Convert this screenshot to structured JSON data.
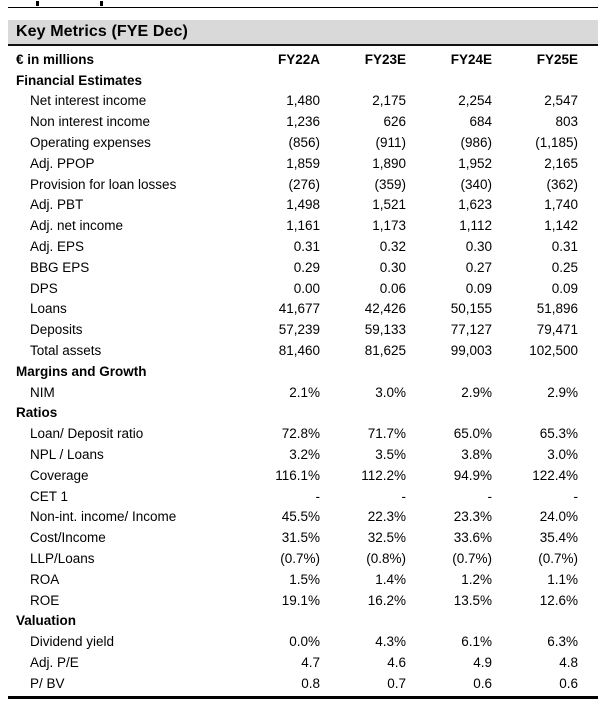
{
  "title": "Key Metrics (FYE Dec)",
  "table": {
    "unit_label": "€ in millions",
    "columns": [
      "FY22A",
      "FY23E",
      "FY24E",
      "FY25E"
    ],
    "sections": [
      {
        "name": "Financial Estimates",
        "rows": [
          {
            "label": "Net interest income",
            "values": [
              "1,480",
              "2,175",
              "2,254",
              "2,547"
            ]
          },
          {
            "label": "Non interest income",
            "values": [
              "1,236",
              "626",
              "684",
              "803"
            ]
          },
          {
            "label": "Operating expenses",
            "values": [
              "(856)",
              "(911)",
              "(986)",
              "(1,185)"
            ]
          },
          {
            "label": "Adj. PPOP",
            "values": [
              "1,859",
              "1,890",
              "1,952",
              "2,165"
            ]
          },
          {
            "label": "Provision for loan losses",
            "values": [
              "(276)",
              "(359)",
              "(340)",
              "(362)"
            ]
          },
          {
            "label": "Adj. PBT",
            "values": [
              "1,498",
              "1,521",
              "1,623",
              "1,740"
            ]
          },
          {
            "label": "Adj. net income",
            "values": [
              "1,161",
              "1,173",
              "1,112",
              "1,142"
            ]
          },
          {
            "label": "Adj. EPS",
            "values": [
              "0.31",
              "0.32",
              "0.30",
              "0.31"
            ]
          },
          {
            "label": "BBG EPS",
            "values": [
              "0.29",
              "0.30",
              "0.27",
              "0.25"
            ]
          },
          {
            "label": "DPS",
            "values": [
              "0.00",
              "0.06",
              "0.09",
              "0.09"
            ]
          },
          {
            "label": "Loans",
            "values": [
              "41,677",
              "42,426",
              "50,155",
              "51,896"
            ]
          },
          {
            "label": "Deposits",
            "values": [
              "57,239",
              "59,133",
              "77,127",
              "79,471"
            ]
          },
          {
            "label": "Total assets",
            "values": [
              "81,460",
              "81,625",
              "99,003",
              "102,500"
            ]
          }
        ]
      },
      {
        "name": "Margins and Growth",
        "rows": [
          {
            "label": "NIM",
            "values": [
              "2.1%",
              "3.0%",
              "2.9%",
              "2.9%"
            ]
          }
        ]
      },
      {
        "name": "Ratios",
        "rows": [
          {
            "label": "Loan/ Deposit ratio",
            "values": [
              "72.8%",
              "71.7%",
              "65.0%",
              "65.3%"
            ]
          },
          {
            "label": "NPL / Loans",
            "values": [
              "3.2%",
              "3.5%",
              "3.8%",
              "3.0%"
            ]
          },
          {
            "label": "Coverage",
            "values": [
              "116.1%",
              "112.2%",
              "94.9%",
              "122.4%"
            ]
          },
          {
            "label": "CET 1",
            "values": [
              "-",
              "-",
              "-",
              "-"
            ]
          },
          {
            "label": "Non-int. income/ Income",
            "values": [
              "45.5%",
              "22.3%",
              "23.3%",
              "24.0%"
            ]
          },
          {
            "label": "Cost/Income",
            "values": [
              "31.5%",
              "32.5%",
              "33.6%",
              "35.4%"
            ]
          },
          {
            "label": "LLP/Loans",
            "values": [
              "(0.7%)",
              "(0.8%)",
              "(0.7%)",
              "(0.7%)"
            ]
          },
          {
            "label": "ROA",
            "values": [
              "1.5%",
              "1.4%",
              "1.2%",
              "1.1%"
            ]
          },
          {
            "label": "ROE",
            "values": [
              "19.1%",
              "16.2%",
              "13.5%",
              "12.6%"
            ]
          }
        ]
      },
      {
        "name": "Valuation",
        "rows": [
          {
            "label": "Dividend yield",
            "values": [
              "0.0%",
              "4.3%",
              "6.1%",
              "6.3%"
            ]
          },
          {
            "label": "Adj. P/E",
            "values": [
              "4.7",
              "4.6",
              "4.9",
              "4.8"
            ]
          },
          {
            "label": "P/ BV",
            "values": [
              "0.8",
              "0.7",
              "0.6",
              "0.6"
            ]
          }
        ]
      }
    ]
  },
  "colors": {
    "title_band_bg": "#d9d9d9",
    "rule": "#000000",
    "text": "#000000"
  }
}
